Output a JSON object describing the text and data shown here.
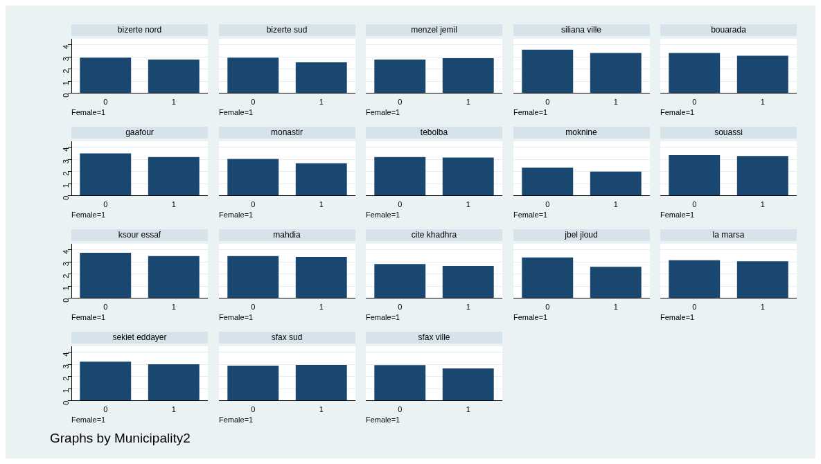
{
  "chart_data": [
    {
      "type": "bar",
      "title": "bizerte nord",
      "categories": [
        "0",
        "1"
      ],
      "values": [
        2.94,
        2.78
      ],
      "color": "#1a476f",
      "xlabel": "Female=1",
      "ylim": [
        0,
        4.5
      ],
      "yticks": [
        0,
        1,
        2,
        3,
        4
      ],
      "grid": "y"
    },
    {
      "type": "bar",
      "title": "bizerte sud",
      "categories": [
        "0",
        "1"
      ],
      "values": [
        2.94,
        2.55
      ],
      "color": "#1a476f",
      "xlabel": "Female=1",
      "ylim": [
        0,
        4.5
      ],
      "yticks": [
        0,
        1,
        2,
        3,
        4
      ],
      "grid": "y",
      "tick_labels": "x"
    },
    {
      "type": "bar",
      "title": "menzel jemil",
      "categories": [
        "0",
        "1"
      ],
      "values": [
        2.78,
        2.9
      ],
      "color": "#1a476f",
      "xlabel": "Female=1",
      "ylim": [
        0,
        4.5
      ],
      "yticks": [
        0,
        1,
        2,
        3,
        4
      ],
      "grid": "y",
      "tick_labels": "x"
    },
    {
      "type": "bar",
      "title": "siliana ville",
      "categories": [
        "0",
        "1"
      ],
      "values": [
        3.6,
        3.33
      ],
      "color": "#1a476f",
      "xlabel": "Female=1",
      "ylim": [
        0,
        4.5
      ],
      "yticks": [
        0,
        1,
        2,
        3,
        4
      ],
      "grid": "y",
      "tick_labels": "x"
    },
    {
      "type": "bar",
      "title": "bouarada",
      "categories": [
        "0",
        "1"
      ],
      "values": [
        3.33,
        3.1
      ],
      "color": "#1a476f",
      "xlabel": "Female=1",
      "ylim": [
        0,
        4.5
      ],
      "yticks": [
        0,
        1,
        2,
        3,
        4
      ],
      "grid": "y",
      "tick_labels": "x"
    },
    {
      "type": "bar",
      "title": "gaafour",
      "categories": [
        "0",
        "1"
      ],
      "values": [
        3.5,
        3.2
      ],
      "color": "#1a476f",
      "xlabel": "Female=1",
      "ylim": [
        0,
        4.5
      ],
      "yticks": [
        0,
        1,
        2,
        3,
        4
      ],
      "grid": "y"
    },
    {
      "type": "bar",
      "title": "monastir",
      "categories": [
        "0",
        "1"
      ],
      "values": [
        3.04,
        2.68
      ],
      "color": "#1a476f",
      "xlabel": "Female=1",
      "ylim": [
        0,
        4.5
      ],
      "yticks": [
        0,
        1,
        2,
        3,
        4
      ],
      "grid": "y",
      "tick_labels": "x"
    },
    {
      "type": "bar",
      "title": "tebolba",
      "categories": [
        "0",
        "1"
      ],
      "values": [
        3.2,
        3.16
      ],
      "color": "#1a476f",
      "xlabel": "Female=1",
      "ylim": [
        0,
        4.5
      ],
      "yticks": [
        0,
        1,
        2,
        3,
        4
      ],
      "grid": "y",
      "tick_labels": "x"
    },
    {
      "type": "bar",
      "title": "moknine",
      "categories": [
        "0",
        "1"
      ],
      "values": [
        2.32,
        2.0
      ],
      "color": "#1a476f",
      "xlabel": "Female=1",
      "ylim": [
        0,
        4.5
      ],
      "yticks": [
        0,
        1,
        2,
        3,
        4
      ],
      "grid": "y",
      "tick_labels": "x"
    },
    {
      "type": "bar",
      "title": "souassi",
      "categories": [
        "0",
        "1"
      ],
      "values": [
        3.36,
        3.28
      ],
      "color": "#1a476f",
      "xlabel": "Female=1",
      "ylim": [
        0,
        4.5
      ],
      "yticks": [
        0,
        1,
        2,
        3,
        4
      ],
      "grid": "y",
      "tick_labels": "x"
    },
    {
      "type": "bar",
      "title": "ksour essaf",
      "categories": [
        "0",
        "1"
      ],
      "values": [
        3.76,
        3.49
      ],
      "color": "#1a476f",
      "xlabel": "Female=1",
      "ylim": [
        0,
        4.5
      ],
      "yticks": [
        0,
        1,
        2,
        3,
        4
      ],
      "grid": "y"
    },
    {
      "type": "bar",
      "title": "mahdia",
      "categories": [
        "0",
        "1"
      ],
      "values": [
        3.49,
        3.41
      ],
      "color": "#1a476f",
      "xlabel": "Female=1",
      "ylim": [
        0,
        4.5
      ],
      "yticks": [
        0,
        1,
        2,
        3,
        4
      ],
      "grid": "y",
      "tick_labels": "x"
    },
    {
      "type": "bar",
      "title": "cite khadhra",
      "categories": [
        "0",
        "1"
      ],
      "values": [
        2.82,
        2.67
      ],
      "color": "#1a476f",
      "xlabel": "Female=1",
      "ylim": [
        0,
        4.5
      ],
      "yticks": [
        0,
        1,
        2,
        3,
        4
      ],
      "grid": "y",
      "tick_labels": "x"
    },
    {
      "type": "bar",
      "title": "jbel jloud",
      "categories": [
        "0",
        "1"
      ],
      "values": [
        3.37,
        2.59
      ],
      "color": "#1a476f",
      "xlabel": "Female=1",
      "ylim": [
        0,
        4.5
      ],
      "yticks": [
        0,
        1,
        2,
        3,
        4
      ],
      "grid": "y",
      "tick_labels": "x"
    },
    {
      "type": "bar",
      "title": "la marsa",
      "categories": [
        "0",
        "1"
      ],
      "values": [
        3.14,
        3.06
      ],
      "color": "#1a476f",
      "xlabel": "Female=1",
      "ylim": [
        0,
        4.5
      ],
      "yticks": [
        0,
        1,
        2,
        3,
        4
      ],
      "grid": "y",
      "tick_labels": "x"
    },
    {
      "type": "bar",
      "title": "sekiet eddayer",
      "categories": [
        "0",
        "1"
      ],
      "values": [
        3.23,
        3.01
      ],
      "color": "#1a476f",
      "xlabel": "Female=1",
      "ylim": [
        0,
        4.5
      ],
      "yticks": [
        0,
        1,
        2,
        3,
        4
      ],
      "grid": "y"
    },
    {
      "type": "bar",
      "title": "sfax sud",
      "categories": [
        "0",
        "1"
      ],
      "values": [
        2.89,
        2.96
      ],
      "color": "#1a476f",
      "xlabel": "Female=1",
      "ylim": [
        0,
        4.5
      ],
      "yticks": [
        0,
        1,
        2,
        3,
        4
      ],
      "grid": "y",
      "tick_labels": "x"
    },
    {
      "type": "bar",
      "title": "sfax ville",
      "categories": [
        "0",
        "1"
      ],
      "values": [
        2.94,
        2.67
      ],
      "color": "#1a476f",
      "xlabel": "Female=1",
      "ylim": [
        0,
        4.5
      ],
      "yticks": [
        0,
        1,
        2,
        3,
        4
      ],
      "grid": "y",
      "tick_labels": "x",
      "annotations": [
        "Graphs by Municipality2"
      ]
    }
  ]
}
